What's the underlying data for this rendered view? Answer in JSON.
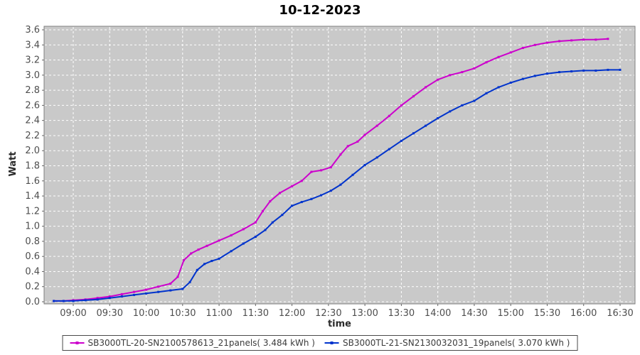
{
  "colors": {
    "page_bg": "#FFFFFF",
    "plot_bg": "#C9C9C9",
    "plot_border": "#7F7F7F",
    "grid": "#FFFFFF",
    "tick_mark": "#666666",
    "tick_text": "#4E4E4E",
    "axis_label_text": "#2B2B2B",
    "title_text": "#000000",
    "legend_border": "#4A4A4A",
    "series_magenta": "#CC00CC",
    "series_blue": "#0033CC"
  },
  "chart_data": {
    "type": "line",
    "title": "10-12-2023",
    "grid": "white dashed on gray, horizontal and vertical",
    "legend_position": "bottom-center, boxed",
    "x_axis": {
      "label": "time",
      "range": [
        "08:36",
        "16:42"
      ],
      "ticks": [
        "09:00",
        "09:30",
        "10:00",
        "10:30",
        "11:00",
        "11:30",
        "12:00",
        "12:30",
        "13:00",
        "13:30",
        "14:00",
        "14:30",
        "15:00",
        "15:30",
        "16:00",
        "16:30"
      ]
    },
    "y_axis": {
      "label": "Watt",
      "min": 0.0,
      "max": 3.6,
      "step": 0.2,
      "tick_format": "one-decimal"
    },
    "series": [
      {
        "name": "SB3000TL-20-SN2100578613_21panels( 3.484 kWh )",
        "total_kwh": "3.484",
        "color": "#CC00CC",
        "points": [
          [
            "08:44",
            0.01
          ],
          [
            "08:52",
            0.01
          ],
          [
            "09:00",
            0.02
          ],
          [
            "09:10",
            0.03
          ],
          [
            "09:20",
            0.05
          ],
          [
            "09:30",
            0.07
          ],
          [
            "09:40",
            0.1
          ],
          [
            "09:50",
            0.13
          ],
          [
            "10:00",
            0.16
          ],
          [
            "10:10",
            0.2
          ],
          [
            "10:20",
            0.24
          ],
          [
            "10:26",
            0.33
          ],
          [
            "10:31",
            0.55
          ],
          [
            "10:37",
            0.64
          ],
          [
            "10:43",
            0.69
          ],
          [
            "10:50",
            0.74
          ],
          [
            "11:00",
            0.81
          ],
          [
            "11:10",
            0.88
          ],
          [
            "11:20",
            0.96
          ],
          [
            "11:30",
            1.05
          ],
          [
            "11:36",
            1.2
          ],
          [
            "11:42",
            1.33
          ],
          [
            "11:50",
            1.44
          ],
          [
            "12:00",
            1.53
          ],
          [
            "12:08",
            1.6
          ],
          [
            "12:16",
            1.72
          ],
          [
            "12:24",
            1.74
          ],
          [
            "12:32",
            1.78
          ],
          [
            "12:40",
            1.95
          ],
          [
            "12:46",
            2.06
          ],
          [
            "12:54",
            2.12
          ],
          [
            "13:00",
            2.21
          ],
          [
            "13:10",
            2.33
          ],
          [
            "13:20",
            2.46
          ],
          [
            "13:30",
            2.6
          ],
          [
            "13:40",
            2.72
          ],
          [
            "13:50",
            2.84
          ],
          [
            "14:00",
            2.94
          ],
          [
            "14:10",
            3.0
          ],
          [
            "14:20",
            3.04
          ],
          [
            "14:30",
            3.09
          ],
          [
            "14:40",
            3.17
          ],
          [
            "14:50",
            3.24
          ],
          [
            "15:00",
            3.3
          ],
          [
            "15:10",
            3.36
          ],
          [
            "15:20",
            3.4
          ],
          [
            "15:30",
            3.43
          ],
          [
            "15:40",
            3.45
          ],
          [
            "15:50",
            3.46
          ],
          [
            "16:00",
            3.47
          ],
          [
            "16:10",
            3.47
          ],
          [
            "16:20",
            3.48
          ]
        ]
      },
      {
        "name": "SB3000TL-21-SN2130032031_19panels( 3.070 kWh )",
        "total_kwh": "3.070",
        "color": "#0033CC",
        "points": [
          [
            "08:44",
            0.01
          ],
          [
            "08:52",
            0.01
          ],
          [
            "09:00",
            0.01
          ],
          [
            "09:10",
            0.02
          ],
          [
            "09:20",
            0.03
          ],
          [
            "09:30",
            0.05
          ],
          [
            "09:40",
            0.07
          ],
          [
            "09:50",
            0.09
          ],
          [
            "10:00",
            0.11
          ],
          [
            "10:10",
            0.13
          ],
          [
            "10:20",
            0.15
          ],
          [
            "10:30",
            0.17
          ],
          [
            "10:36",
            0.26
          ],
          [
            "10:42",
            0.42
          ],
          [
            "10:48",
            0.5
          ],
          [
            "10:54",
            0.54
          ],
          [
            "11:00",
            0.57
          ],
          [
            "11:10",
            0.67
          ],
          [
            "11:20",
            0.77
          ],
          [
            "11:30",
            0.86
          ],
          [
            "11:38",
            0.95
          ],
          [
            "11:44",
            1.05
          ],
          [
            "11:52",
            1.15
          ],
          [
            "12:00",
            1.27
          ],
          [
            "12:08",
            1.32
          ],
          [
            "12:16",
            1.36
          ],
          [
            "12:24",
            1.41
          ],
          [
            "12:32",
            1.47
          ],
          [
            "12:40",
            1.55
          ],
          [
            "12:50",
            1.68
          ],
          [
            "13:00",
            1.81
          ],
          [
            "13:10",
            1.91
          ],
          [
            "13:20",
            2.02
          ],
          [
            "13:30",
            2.13
          ],
          [
            "13:40",
            2.23
          ],
          [
            "13:50",
            2.33
          ],
          [
            "14:00",
            2.43
          ],
          [
            "14:10",
            2.52
          ],
          [
            "14:20",
            2.6
          ],
          [
            "14:30",
            2.66
          ],
          [
            "14:40",
            2.76
          ],
          [
            "14:50",
            2.84
          ],
          [
            "15:00",
            2.9
          ],
          [
            "15:10",
            2.95
          ],
          [
            "15:20",
            2.99
          ],
          [
            "15:30",
            3.02
          ],
          [
            "15:40",
            3.04
          ],
          [
            "15:50",
            3.05
          ],
          [
            "16:00",
            3.06
          ],
          [
            "16:10",
            3.06
          ],
          [
            "16:20",
            3.07
          ],
          [
            "16:30",
            3.07
          ]
        ]
      }
    ]
  }
}
